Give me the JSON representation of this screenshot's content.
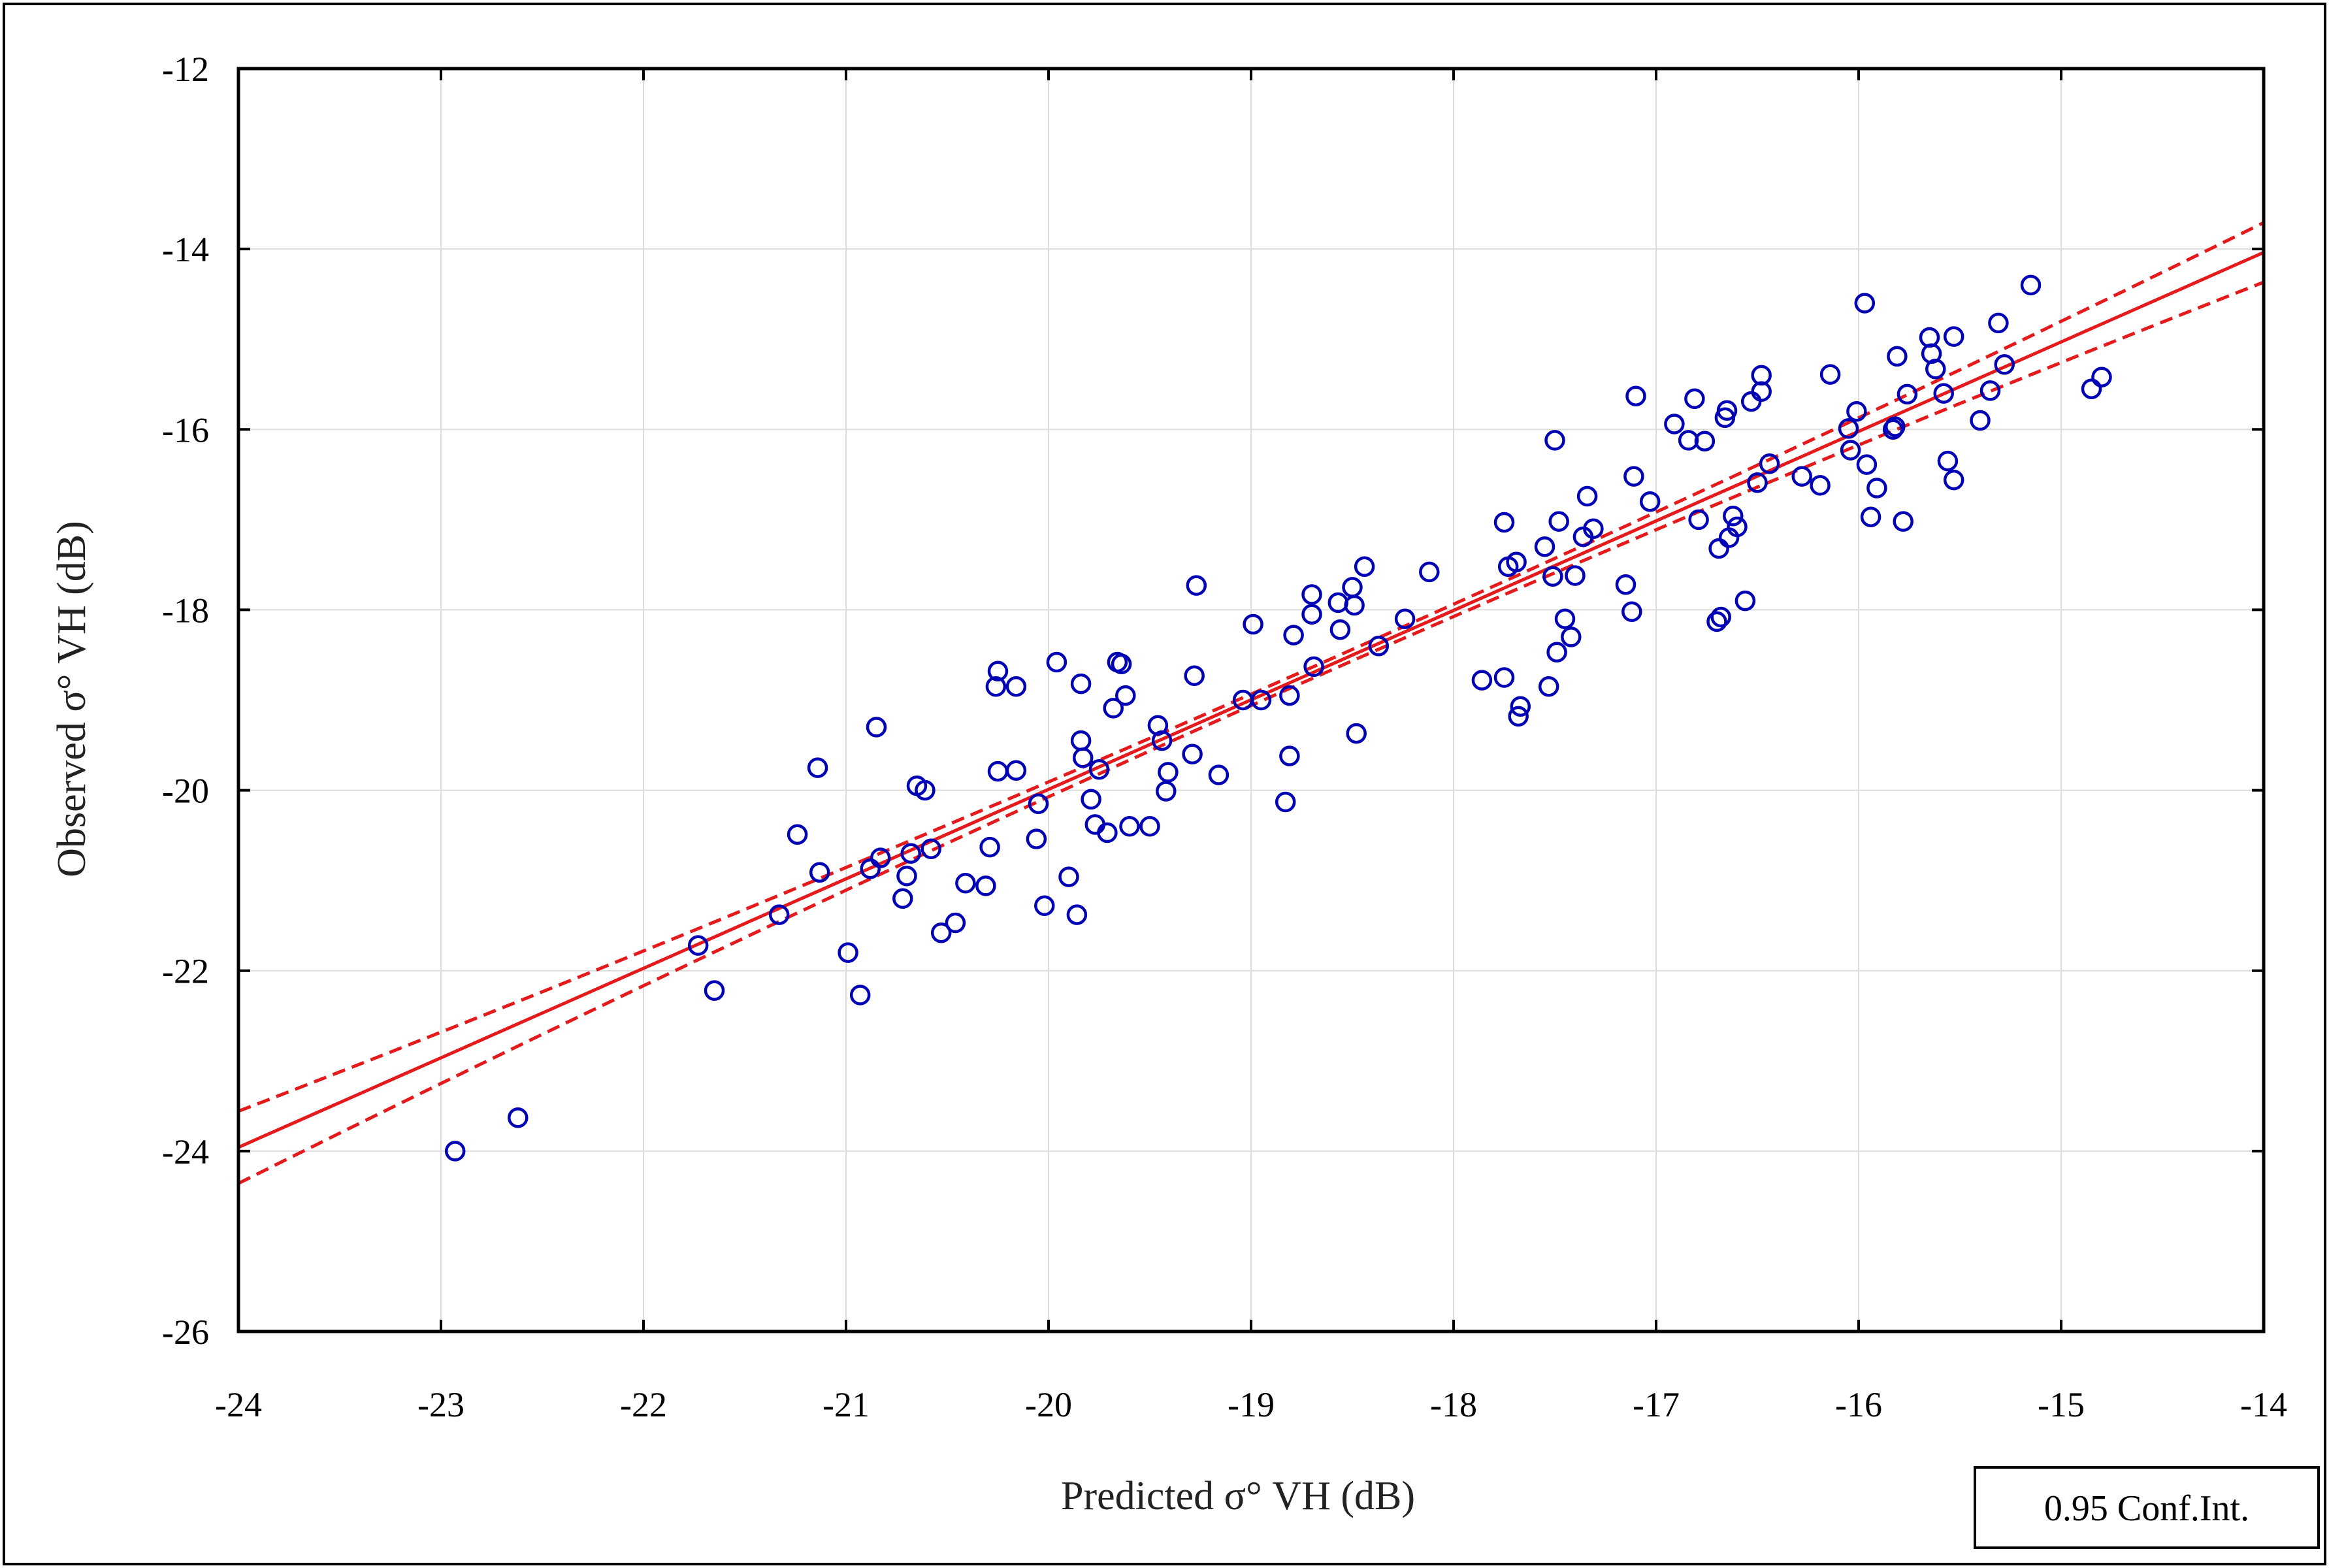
{
  "chart_data": {
    "type": "scatter",
    "xlabel": "Predicted  σ° VH (dB)",
    "ylabel": "Observed  σ° VH (dB)",
    "xlim": [
      -24,
      -14
    ],
    "ylim": [
      -26,
      -12
    ],
    "xticks": [
      -24,
      -23,
      -22,
      -21,
      -20,
      -19,
      -18,
      -17,
      -16,
      -15,
      -14
    ],
    "yticks": [
      -26,
      -24,
      -22,
      -20,
      -18,
      -16,
      -14,
      -12
    ],
    "grid": true,
    "legend": "0.95 Conf.Int.",
    "legend_position": "bottom-right",
    "colors": {
      "points": "#0000b4",
      "fit": "#e41a1c",
      "frame": "#000000",
      "grid": "#dcdcdc"
    },
    "regression": {
      "slope": 0.992,
      "intercept": -0.15
    },
    "confidence_band": {
      "at_x": [
        -24,
        -19.5,
        -14
      ],
      "half_width": [
        0.4,
        0.07,
        0.33
      ]
    },
    "points": [
      [
        -22.93,
        -24.0
      ],
      [
        -22.62,
        -23.63
      ],
      [
        -21.73,
        -21.72
      ],
      [
        -21.65,
        -22.22
      ],
      [
        -21.33,
        -21.38
      ],
      [
        -21.24,
        -20.49
      ],
      [
        -21.14,
        -19.75
      ],
      [
        -21.13,
        -20.91
      ],
      [
        -20.99,
        -21.8
      ],
      [
        -20.93,
        -22.27
      ],
      [
        -20.88,
        -20.87
      ],
      [
        -20.85,
        -19.3
      ],
      [
        -20.83,
        -20.75
      ],
      [
        -20.72,
        -21.2
      ],
      [
        -20.7,
        -20.95
      ],
      [
        -20.68,
        -20.7
      ],
      [
        -20.65,
        -19.95
      ],
      [
        -20.61,
        -20.0
      ],
      [
        -20.58,
        -20.65
      ],
      [
        -20.53,
        -21.58
      ],
      [
        -20.46,
        -21.47
      ],
      [
        -20.41,
        -21.03
      ],
      [
        -20.31,
        -21.06
      ],
      [
        -20.29,
        -20.63
      ],
      [
        -20.26,
        -18.85
      ],
      [
        -20.25,
        -18.68
      ],
      [
        -20.25,
        -19.79
      ],
      [
        -20.16,
        -18.85
      ],
      [
        -20.16,
        -19.78
      ],
      [
        -20.06,
        -20.54
      ],
      [
        -20.05,
        -20.15
      ],
      [
        -20.02,
        -21.28
      ],
      [
        -19.96,
        -18.58
      ],
      [
        -19.9,
        -20.96
      ],
      [
        -19.86,
        -21.38
      ],
      [
        -19.84,
        -18.82
      ],
      [
        -19.84,
        -19.45
      ],
      [
        -19.83,
        -19.64
      ],
      [
        -19.79,
        -20.1
      ],
      [
        -19.77,
        -20.38
      ],
      [
        -19.75,
        -19.77
      ],
      [
        -19.71,
        -20.47
      ],
      [
        -19.68,
        -19.09
      ],
      [
        -19.66,
        -18.58
      ],
      [
        -19.64,
        -18.6
      ],
      [
        -19.62,
        -18.95
      ],
      [
        -19.6,
        -20.4
      ],
      [
        -19.5,
        -20.4
      ],
      [
        -19.46,
        -19.28
      ],
      [
        -19.44,
        -19.45
      ],
      [
        -19.42,
        -20.01
      ],
      [
        -19.41,
        -19.8
      ],
      [
        -19.29,
        -19.6
      ],
      [
        -19.28,
        -18.73
      ],
      [
        -19.27,
        -17.73
      ],
      [
        -19.16,
        -19.83
      ],
      [
        -19.04,
        -19.0
      ],
      [
        -18.99,
        -18.16
      ],
      [
        -18.95,
        -19.0
      ],
      [
        -18.83,
        -20.13
      ],
      [
        -18.81,
        -19.62
      ],
      [
        -18.81,
        -18.95
      ],
      [
        -18.79,
        -18.28
      ],
      [
        -18.7,
        -17.83
      ],
      [
        -18.7,
        -18.05
      ],
      [
        -18.69,
        -18.63
      ],
      [
        -18.57,
        -17.92
      ],
      [
        -18.56,
        -18.22
      ],
      [
        -18.5,
        -17.75
      ],
      [
        -18.49,
        -17.95
      ],
      [
        -18.48,
        -19.37
      ],
      [
        -18.44,
        -17.52
      ],
      [
        -18.37,
        -18.4
      ],
      [
        -18.24,
        -18.1
      ],
      [
        -18.12,
        -17.58
      ],
      [
        -17.86,
        -18.78
      ],
      [
        -17.75,
        -18.75
      ],
      [
        -17.75,
        -17.03
      ],
      [
        -17.73,
        -17.52
      ],
      [
        -17.69,
        -17.47
      ],
      [
        -17.68,
        -19.18
      ],
      [
        -17.67,
        -19.07
      ],
      [
        -17.55,
        -17.3
      ],
      [
        -17.53,
        -18.85
      ],
      [
        -17.51,
        -17.63
      ],
      [
        -17.5,
        -16.12
      ],
      [
        -17.49,
        -18.47
      ],
      [
        -17.48,
        -17.02
      ],
      [
        -17.45,
        -18.1
      ],
      [
        -17.42,
        -18.3
      ],
      [
        -17.4,
        -17.62
      ],
      [
        -17.36,
        -17.19
      ],
      [
        -17.34,
        -16.74
      ],
      [
        -17.31,
        -17.1
      ],
      [
        -17.15,
        -17.72
      ],
      [
        -17.12,
        -18.02
      ],
      [
        -17.11,
        -16.52
      ],
      [
        -17.1,
        -15.63
      ],
      [
        -17.03,
        -16.8
      ],
      [
        -16.91,
        -15.94
      ],
      [
        -16.84,
        -16.12
      ],
      [
        -16.81,
        -15.66
      ],
      [
        -16.79,
        -17.0
      ],
      [
        -16.76,
        -16.13
      ],
      [
        -16.7,
        -18.13
      ],
      [
        -16.69,
        -17.32
      ],
      [
        -16.68,
        -18.08
      ],
      [
        -16.66,
        -15.87
      ],
      [
        -16.65,
        -15.79
      ],
      [
        -16.64,
        -17.2
      ],
      [
        -16.62,
        -16.96
      ],
      [
        -16.6,
        -17.08
      ],
      [
        -16.56,
        -17.9
      ],
      [
        -16.53,
        -15.69
      ],
      [
        -16.5,
        -16.59
      ],
      [
        -16.48,
        -15.4
      ],
      [
        -16.48,
        -15.58
      ],
      [
        -16.44,
        -16.38
      ],
      [
        -16.28,
        -16.52
      ],
      [
        -16.19,
        -16.62
      ],
      [
        -16.14,
        -15.39
      ],
      [
        -16.05,
        -15.99
      ],
      [
        -16.04,
        -16.23
      ],
      [
        -16.01,
        -15.8
      ],
      [
        -15.97,
        -14.6
      ],
      [
        -15.96,
        -16.39
      ],
      [
        -15.94,
        -16.97
      ],
      [
        -15.91,
        -16.65
      ],
      [
        -15.83,
        -16.0
      ],
      [
        -15.82,
        -15.97
      ],
      [
        -15.81,
        -15.19
      ],
      [
        -15.78,
        -17.02
      ],
      [
        -15.76,
        -15.61
      ],
      [
        -15.65,
        -14.98
      ],
      [
        -15.64,
        -15.16
      ],
      [
        -15.62,
        -15.33
      ],
      [
        -15.58,
        -15.6
      ],
      [
        -15.56,
        -16.35
      ],
      [
        -15.53,
        -16.56
      ],
      [
        -15.53,
        -14.97
      ],
      [
        -15.4,
        -15.9
      ],
      [
        -15.35,
        -15.57
      ],
      [
        -15.31,
        -14.82
      ],
      [
        -15.28,
        -15.28
      ],
      [
        -15.15,
        -14.4
      ],
      [
        -14.85,
        -15.55
      ],
      [
        -14.8,
        -15.42
      ]
    ]
  }
}
